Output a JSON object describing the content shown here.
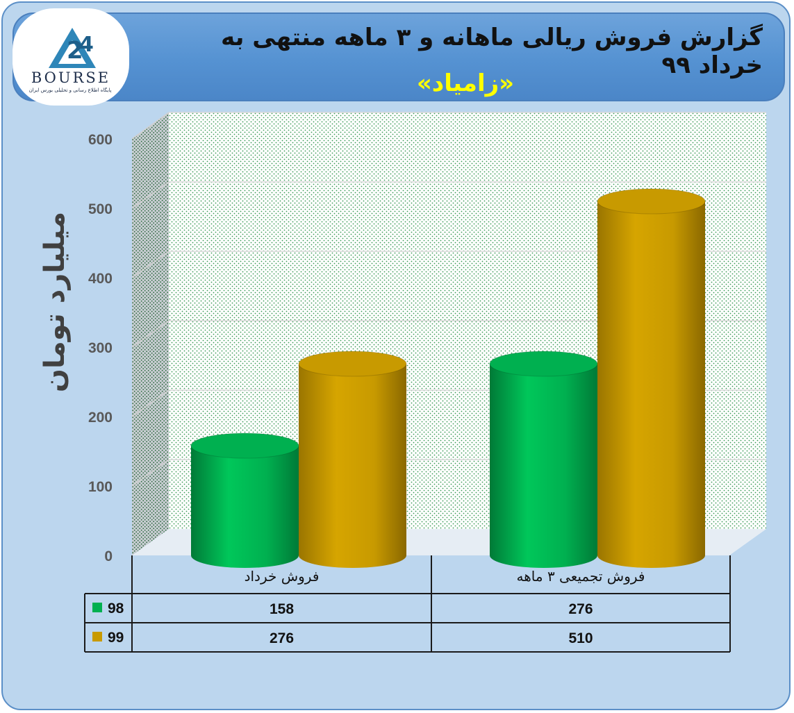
{
  "header": {
    "title": "گزارش فروش ریالی ماهانه و ۳ ماهه منتهی به خرداد ۹۹",
    "subtitle": "«زامیاد»"
  },
  "logo": {
    "text": "BOURSE",
    "tagline": "پایگاه اطلاع رسانی و تحلیلی بورس ایران"
  },
  "colors": {
    "series_98": "#00b050",
    "series_99": "#c89a00",
    "frame_bg": "#bcd6ee",
    "header_bg": "#5592d2"
  },
  "chart_data": {
    "type": "bar",
    "style": "3d-cylinder",
    "ylabel": "میلیارد تومان",
    "ylim": [
      0,
      600
    ],
    "yticks": [
      0,
      100,
      200,
      300,
      400,
      500,
      600
    ],
    "grid": true,
    "categories": [
      "فروش خرداد",
      "فروش تجمیعی ۳ ماهه"
    ],
    "series": [
      {
        "name": "98",
        "color": "#00b050",
        "values": [
          158,
          276
        ]
      },
      {
        "name": "99",
        "color": "#c89a00",
        "values": [
          276,
          510
        ]
      }
    ],
    "data_table": true
  }
}
